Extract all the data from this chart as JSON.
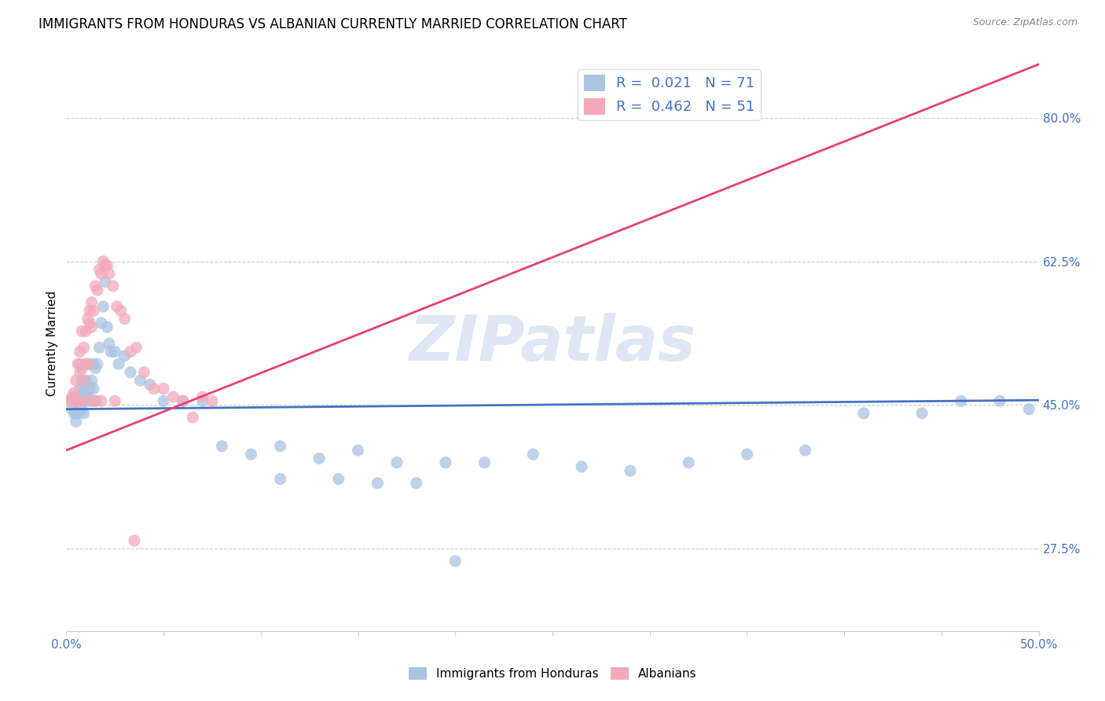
{
  "title": "IMMIGRANTS FROM HONDURAS VS ALBANIAN CURRENTLY MARRIED CORRELATION CHART",
  "source": "Source: ZipAtlas.com",
  "ylabel_label": "Currently Married",
  "ylabel_ticks": [
    "27.5%",
    "45.0%",
    "62.5%",
    "80.0%"
  ],
  "ylabel_values": [
    0.275,
    0.45,
    0.625,
    0.8
  ],
  "xlim": [
    0.0,
    0.5
  ],
  "ylim": [
    0.175,
    0.875
  ],
  "watermark": "ZIPatlas",
  "blue_R": 0.021,
  "blue_N": 71,
  "pink_R": 0.462,
  "pink_N": 51,
  "blue_color": "#aac4e2",
  "pink_color": "#f2aabb",
  "blue_line_color": "#4472c4",
  "pink_line_color": "#e84070",
  "blue_scatter_x": [
    0.002,
    0.003,
    0.004,
    0.004,
    0.005,
    0.005,
    0.005,
    0.006,
    0.006,
    0.007,
    0.007,
    0.007,
    0.008,
    0.008,
    0.008,
    0.009,
    0.009,
    0.01,
    0.01,
    0.01,
    0.011,
    0.011,
    0.012,
    0.012,
    0.013,
    0.013,
    0.014,
    0.014,
    0.015,
    0.015,
    0.016,
    0.017,
    0.018,
    0.019,
    0.02,
    0.021,
    0.022,
    0.023,
    0.025,
    0.027,
    0.03,
    0.033,
    0.038,
    0.043,
    0.05,
    0.06,
    0.07,
    0.08,
    0.095,
    0.11,
    0.13,
    0.15,
    0.17,
    0.195,
    0.215,
    0.24,
    0.265,
    0.29,
    0.32,
    0.35,
    0.38,
    0.41,
    0.44,
    0.46,
    0.48,
    0.495,
    0.11,
    0.14,
    0.16,
    0.18,
    0.2
  ],
  "blue_scatter_y": [
    0.455,
    0.445,
    0.44,
    0.46,
    0.44,
    0.455,
    0.43,
    0.46,
    0.44,
    0.455,
    0.47,
    0.5,
    0.46,
    0.48,
    0.445,
    0.47,
    0.44,
    0.46,
    0.48,
    0.455,
    0.5,
    0.46,
    0.5,
    0.47,
    0.48,
    0.455,
    0.5,
    0.47,
    0.495,
    0.455,
    0.5,
    0.52,
    0.55,
    0.57,
    0.6,
    0.545,
    0.525,
    0.515,
    0.515,
    0.5,
    0.51,
    0.49,
    0.48,
    0.475,
    0.455,
    0.455,
    0.455,
    0.4,
    0.39,
    0.4,
    0.385,
    0.395,
    0.38,
    0.38,
    0.38,
    0.39,
    0.375,
    0.37,
    0.38,
    0.39,
    0.395,
    0.44,
    0.44,
    0.455,
    0.455,
    0.445,
    0.36,
    0.36,
    0.355,
    0.355,
    0.26
  ],
  "pink_scatter_x": [
    0.002,
    0.003,
    0.004,
    0.004,
    0.005,
    0.005,
    0.006,
    0.006,
    0.007,
    0.007,
    0.007,
    0.008,
    0.008,
    0.009,
    0.009,
    0.01,
    0.01,
    0.011,
    0.011,
    0.012,
    0.012,
    0.013,
    0.013,
    0.014,
    0.015,
    0.016,
    0.017,
    0.018,
    0.019,
    0.02,
    0.021,
    0.022,
    0.024,
    0.026,
    0.028,
    0.03,
    0.033,
    0.036,
    0.04,
    0.045,
    0.05,
    0.055,
    0.06,
    0.065,
    0.07,
    0.075,
    0.012,
    0.015,
    0.018,
    0.025,
    0.035
  ],
  "pink_scatter_y": [
    0.455,
    0.46,
    0.455,
    0.465,
    0.455,
    0.48,
    0.5,
    0.455,
    0.455,
    0.49,
    0.515,
    0.495,
    0.54,
    0.52,
    0.48,
    0.54,
    0.5,
    0.555,
    0.5,
    0.55,
    0.565,
    0.575,
    0.545,
    0.565,
    0.595,
    0.59,
    0.615,
    0.61,
    0.625,
    0.62,
    0.62,
    0.61,
    0.595,
    0.57,
    0.565,
    0.555,
    0.515,
    0.52,
    0.49,
    0.47,
    0.47,
    0.46,
    0.455,
    0.435,
    0.46,
    0.455,
    0.455,
    0.455,
    0.455,
    0.455,
    0.285
  ],
  "blue_line_x": [
    0.0,
    0.5
  ],
  "blue_line_y": [
    0.445,
    0.456
  ],
  "pink_line_x": [
    0.0,
    0.5
  ],
  "pink_line_y": [
    0.395,
    0.865
  ],
  "legend_blue_label_r": "R = ",
  "legend_blue_r_val": "0.021",
  "legend_blue_n": "  N = ",
  "legend_blue_n_val": "71",
  "legend_pink_label_r": "R = ",
  "legend_pink_r_val": "0.462",
  "legend_pink_n": "  N = ",
  "legend_pink_n_val": "51",
  "bottom_legend_blue": "Immigrants from Honduras",
  "bottom_legend_pink": "Albanians",
  "grid_color": "#cccccc",
  "background_color": "#ffffff",
  "title_fontsize": 12,
  "axis_label_fontsize": 11,
  "tick_fontsize": 11
}
